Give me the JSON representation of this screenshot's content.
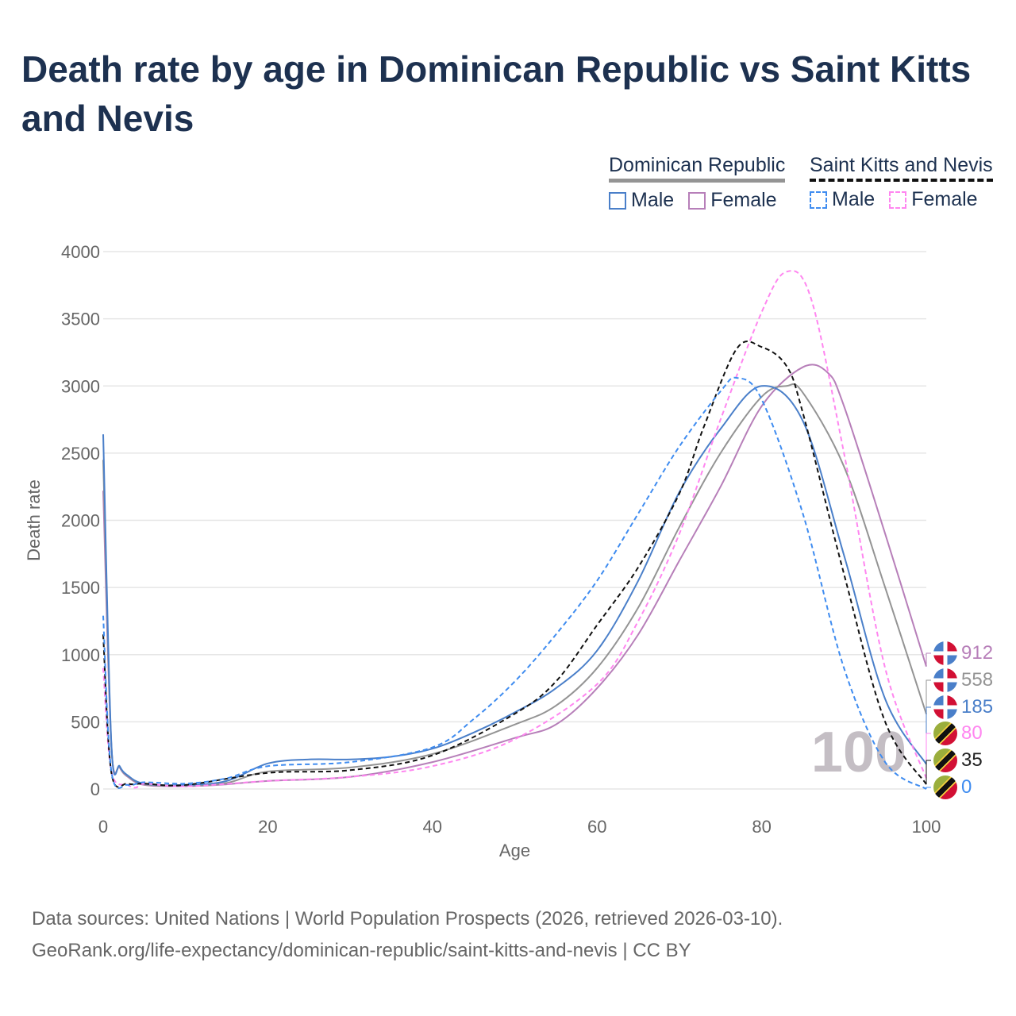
{
  "title": "Death rate by age in Dominican Republic vs Saint Kitts and Nevis",
  "legend": {
    "groups": [
      {
        "name": "Dominican Republic",
        "items": [
          "Male",
          "Female"
        ]
      },
      {
        "name": "Saint Kitts and Nevis",
        "items": [
          "Male",
          "Female"
        ]
      }
    ]
  },
  "watermark": "100",
  "source": {
    "line1": "Data sources: United Nations | World Population Prospects (2026, retrieved 2026-03-10).",
    "line2": "GeoRank.org/life-expectancy/dominican-republic/saint-kitts-and-nevis | CC BY"
  },
  "chart_data": {
    "type": "line",
    "title": "Death rate by age in Dominican Republic vs Saint Kitts and Nevis",
    "xlabel": "Age",
    "ylabel": "Death rate",
    "xlim": [
      0,
      100
    ],
    "ylim": [
      0,
      4000
    ],
    "xticks": [
      "0",
      "20",
      "40",
      "60",
      "80",
      "100"
    ],
    "yticks": [
      "0",
      "500",
      "1000",
      "1500",
      "2000",
      "2500",
      "3000",
      "3500",
      "4000"
    ],
    "grid": true,
    "series": [
      {
        "name": "Dominican Republic Female",
        "color": "#b77fb9",
        "dash": false,
        "end_label": "912",
        "flag": "dr",
        "x": [
          0,
          1,
          2,
          3,
          5,
          10,
          15,
          20,
          30,
          40,
          50,
          55,
          60,
          65,
          70,
          75,
          80,
          85,
          88,
          90,
          95,
          100
        ],
        "y": [
          2220,
          310,
          160,
          90,
          30,
          20,
          35,
          60,
          90,
          200,
          380,
          480,
          750,
          1150,
          1700,
          2250,
          2850,
          3140,
          3100,
          2850,
          1900,
          912
        ]
      },
      {
        "name": "Dominican Republic Total",
        "color": "#949494",
        "dash": false,
        "end_label": "558",
        "flag": "dr",
        "x": [
          0,
          1,
          2,
          3,
          5,
          10,
          15,
          20,
          30,
          40,
          50,
          55,
          60,
          65,
          70,
          75,
          80,
          83,
          85,
          90,
          95,
          100
        ],
        "y": [
          2450,
          320,
          165,
          95,
          35,
          25,
          45,
          130,
          160,
          260,
          480,
          620,
          900,
          1350,
          1950,
          2500,
          2920,
          3000,
          2950,
          2400,
          1500,
          558
        ]
      },
      {
        "name": "Dominican Republic Male",
        "color": "#4a7fc9",
        "dash": false,
        "end_label": "185",
        "flag": "dr",
        "x": [
          0,
          1,
          2,
          3,
          5,
          10,
          15,
          20,
          25,
          30,
          35,
          40,
          45,
          50,
          55,
          60,
          65,
          70,
          75,
          80,
          85,
          90,
          95,
          100
        ],
        "y": [
          2640,
          330,
          170,
          100,
          40,
          30,
          60,
          190,
          220,
          220,
          240,
          300,
          420,
          570,
          750,
          1030,
          1550,
          2210,
          2680,
          3000,
          2740,
          1740,
          670,
          185
        ]
      },
      {
        "name": "Saint Kitts and Nevis Female",
        "color": "#ff86f0",
        "dash": true,
        "end_label": "80",
        "flag": "kn",
        "x": [
          0,
          1,
          3,
          4,
          5,
          10,
          20,
          30,
          40,
          50,
          60,
          65,
          70,
          75,
          80,
          83,
          86,
          90,
          95,
          100
        ],
        "y": [
          900,
          130,
          30,
          10,
          40,
          20,
          60,
          90,
          170,
          370,
          780,
          1250,
          1900,
          2750,
          3550,
          3850,
          3650,
          2500,
          900,
          80
        ]
      },
      {
        "name": "Saint Kitts and Nevis Total",
        "color": "#111111",
        "dash": true,
        "end_label": "35",
        "flag": "kn",
        "x": [
          0,
          1,
          3,
          5,
          10,
          20,
          30,
          40,
          50,
          55,
          60,
          65,
          70,
          73,
          77,
          80,
          83,
          85,
          90,
          95,
          100
        ],
        "y": [
          1150,
          120,
          40,
          40,
          30,
          120,
          140,
          250,
          560,
          800,
          1220,
          1650,
          2200,
          2700,
          3280,
          3290,
          3150,
          2800,
          1600,
          500,
          35
        ]
      },
      {
        "name": "Saint Kitts and Nevis Male",
        "color": "#3f8cf0",
        "dash": true,
        "end_label": "0",
        "flag": "kn",
        "x": [
          0,
          1,
          3,
          5,
          10,
          15,
          20,
          30,
          40,
          45,
          50,
          55,
          60,
          65,
          70,
          75,
          77,
          80,
          85,
          90,
          95,
          100
        ],
        "y": [
          1290,
          130,
          30,
          50,
          40,
          80,
          170,
          200,
          310,
          520,
          800,
          1150,
          1550,
          2050,
          2550,
          2960,
          3060,
          2900,
          2050,
          900,
          200,
          0
        ]
      }
    ]
  }
}
